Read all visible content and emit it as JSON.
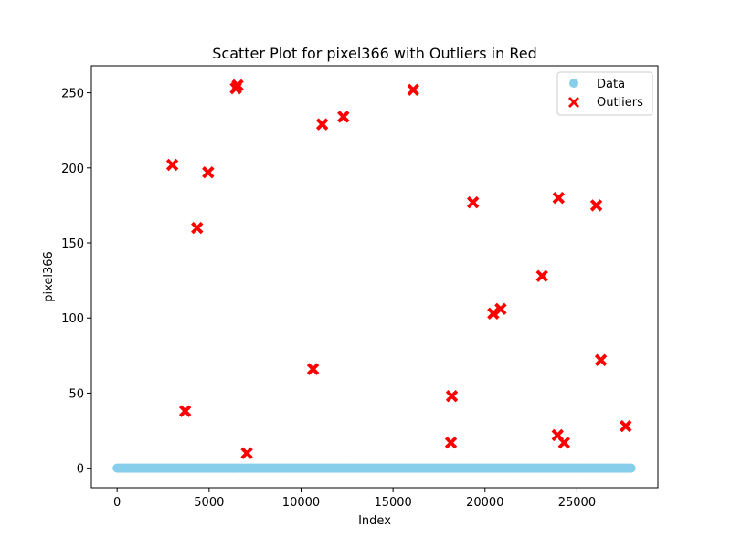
{
  "chart_data": {
    "type": "scatter",
    "title": "Scatter Plot for pixel366 with Outliers in Red",
    "xlabel": "Index",
    "ylabel": "pixel366",
    "xlim": [
      -1400,
      29400
    ],
    "ylim": [
      -13,
      268
    ],
    "xticks": [
      0,
      5000,
      10000,
      15000,
      20000,
      25000
    ],
    "yticks": [
      0,
      50,
      100,
      150,
      200,
      250
    ],
    "legend_position": "top-right",
    "series": [
      {
        "name": "Data",
        "marker": "circle",
        "color": "#87ceeb",
        "x_range": [
          0,
          27999
        ],
        "y_value": 0
      },
      {
        "name": "Outliers",
        "marker": "x",
        "color": "#ff0000",
        "points": [
          {
            "x": 3000,
            "y": 202
          },
          {
            "x": 3700,
            "y": 38
          },
          {
            "x": 4350,
            "y": 160
          },
          {
            "x": 4950,
            "y": 197
          },
          {
            "x": 6450,
            "y": 253
          },
          {
            "x": 6550,
            "y": 255
          },
          {
            "x": 7050,
            "y": 10
          },
          {
            "x": 10650,
            "y": 66
          },
          {
            "x": 11150,
            "y": 229
          },
          {
            "x": 12300,
            "y": 234
          },
          {
            "x": 16100,
            "y": 252
          },
          {
            "x": 18150,
            "y": 17
          },
          {
            "x": 18200,
            "y": 48
          },
          {
            "x": 19350,
            "y": 177
          },
          {
            "x": 20450,
            "y": 103
          },
          {
            "x": 20850,
            "y": 106
          },
          {
            "x": 23100,
            "y": 128
          },
          {
            "x": 23950,
            "y": 22
          },
          {
            "x": 24000,
            "y": 180
          },
          {
            "x": 24300,
            "y": 17
          },
          {
            "x": 26050,
            "y": 175
          },
          {
            "x": 26300,
            "y": 72
          },
          {
            "x": 27650,
            "y": 28
          }
        ]
      }
    ]
  }
}
